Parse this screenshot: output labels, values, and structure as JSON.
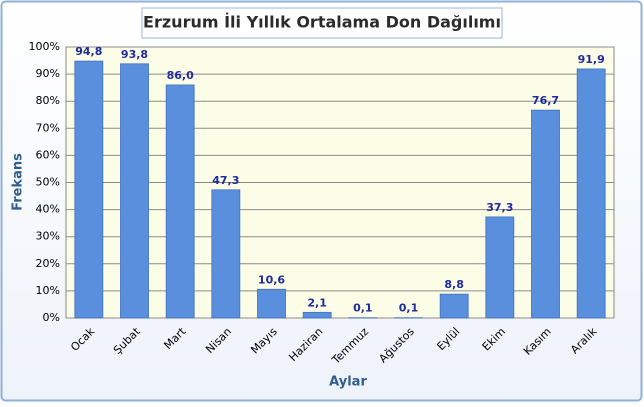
{
  "chart_data": {
    "type": "bar",
    "title": "Erzurum İli Yıllık Ortalama Don Dağılımı",
    "x_label": "Aylar",
    "y_label": "Frekans",
    "categories": [
      "Ocak",
      "Şubat",
      "Mart",
      "Nisan",
      "Mayıs",
      "Haziran",
      "Temmuz",
      "Ağustos",
      "Eylül",
      "Ekim",
      "Kasım",
      "Aralık"
    ],
    "values": [
      94.8,
      93.8,
      86.0,
      47.3,
      10.6,
      2.1,
      0.1,
      0.1,
      8.8,
      37.3,
      76.7,
      91.9
    ],
    "value_labels": [
      "94,8",
      "93,8",
      "86,0",
      "47,3",
      "10,6",
      "2,1",
      "0,1",
      "0,1",
      "8,8",
      "37,3",
      "76,7",
      "91,9"
    ],
    "color": "#5a8fde",
    "ylim": [
      0,
      100
    ],
    "yticks": [
      {
        "value": 0,
        "label": "0%"
      },
      {
        "value": 10,
        "label": "10%"
      },
      {
        "value": 20,
        "label": "20%"
      },
      {
        "value": 30,
        "label": "30%"
      },
      {
        "value": 40,
        "label": "40%"
      },
      {
        "value": 50,
        "label": "50%"
      },
      {
        "value": 60,
        "label": "60%"
      },
      {
        "value": 70,
        "label": "70%"
      },
      {
        "value": 80,
        "label": "80%"
      },
      {
        "value": 90,
        "label": "90%"
      },
      {
        "value": 100,
        "label": "100%"
      }
    ],
    "grid": true
  }
}
